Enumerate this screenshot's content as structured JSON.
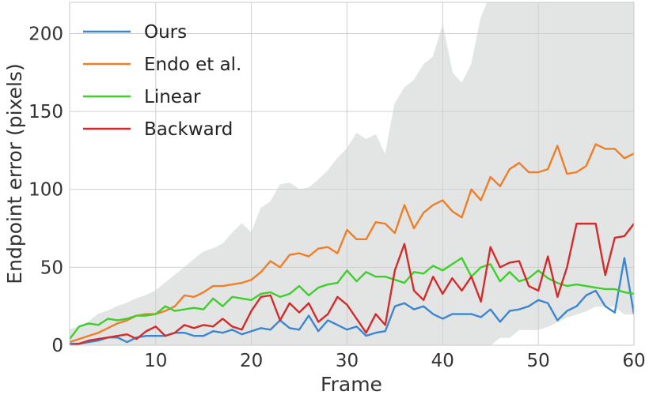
{
  "chart_data": {
    "type": "line",
    "xlabel": "Frame",
    "ylabel": "Endpoint error (pixels)",
    "xlim": [
      1,
      60
    ],
    "ylim": [
      0,
      220
    ],
    "xticks": [
      10,
      20,
      30,
      40,
      50,
      60
    ],
    "yticks": [
      0,
      50,
      100,
      150,
      200
    ],
    "grid": true,
    "legend_position": "top-left",
    "x": [
      1,
      2,
      3,
      4,
      5,
      6,
      7,
      8,
      9,
      10,
      11,
      12,
      13,
      14,
      15,
      16,
      17,
      18,
      19,
      20,
      21,
      22,
      23,
      24,
      25,
      26,
      27,
      28,
      29,
      30,
      31,
      32,
      33,
      34,
      35,
      36,
      37,
      38,
      39,
      40,
      41,
      42,
      43,
      44,
      45,
      46,
      47,
      48,
      49,
      50,
      51,
      52,
      53,
      54,
      55,
      56,
      57,
      58,
      59,
      60
    ],
    "series": [
      {
        "name": "Ours",
        "color": "#3b86d0",
        "values": [
          1,
          1,
          2,
          3,
          5,
          5,
          2,
          5,
          6,
          6,
          6,
          8,
          8,
          6,
          6,
          9,
          8,
          10,
          7,
          9,
          11,
          10,
          16,
          11,
          10,
          19,
          9,
          16,
          13,
          10,
          12,
          6,
          8,
          9,
          25,
          27,
          23,
          25,
          20,
          17,
          20,
          20,
          20,
          18,
          23,
          15,
          22,
          23,
          25,
          29,
          27,
          16,
          22,
          25,
          32,
          35,
          25,
          21,
          56,
          20
        ]
      },
      {
        "name": "Endo et al.",
        "color": "#f07e26",
        "values": [
          2,
          4,
          6,
          8,
          11,
          14,
          16,
          19,
          20,
          20,
          22,
          25,
          32,
          31,
          34,
          38,
          38,
          39,
          40,
          42,
          47,
          54,
          50,
          58,
          59,
          57,
          62,
          63,
          59,
          74,
          68,
          68,
          79,
          78,
          72,
          90,
          75,
          85,
          90,
          93,
          86,
          82,
          100,
          93,
          108,
          102,
          113,
          117,
          111,
          111,
          113,
          128,
          110,
          111,
          115,
          129,
          126,
          126,
          120,
          123
        ]
      },
      {
        "name": "Linear",
        "color": "#3ecf2a",
        "values": [
          4,
          12,
          14,
          13,
          17,
          16,
          17,
          19,
          19,
          20,
          25,
          22,
          23,
          24,
          23,
          30,
          25,
          31,
          30,
          29,
          33,
          34,
          31,
          33,
          38,
          32,
          37,
          39,
          40,
          48,
          41,
          47,
          44,
          44,
          42,
          40,
          47,
          46,
          51,
          48,
          52,
          56,
          44,
          50,
          52,
          41,
          47,
          41,
          43,
          48,
          43,
          40,
          38,
          39,
          38,
          37,
          36,
          36,
          34,
          33
        ]
      },
      {
        "name": "Backward",
        "color": "#d42a2a",
        "values": [
          0,
          1,
          3,
          4,
          5,
          6,
          7,
          4,
          9,
          12,
          6,
          8,
          13,
          11,
          13,
          12,
          17,
          12,
          10,
          22,
          31,
          32,
          16,
          27,
          21,
          27,
          15,
          20,
          31,
          26,
          17,
          8,
          20,
          13,
          48,
          65,
          35,
          29,
          44,
          33,
          43,
          35,
          44,
          28,
          63,
          50,
          53,
          54,
          38,
          35,
          57,
          31,
          50,
          78,
          78,
          78,
          45,
          69,
          70,
          78
        ]
      },
      {
        "name": "",
        "type": "area",
        "color": "#e3e5e5",
        "lower": [
          0,
          0,
          0,
          0,
          0,
          0,
          0,
          0,
          0,
          0,
          0,
          0,
          0,
          0,
          0,
          0,
          0,
          0,
          0,
          0,
          0,
          0,
          0,
          0,
          0,
          0,
          0,
          0,
          0,
          0,
          0,
          0,
          0,
          0,
          0,
          0,
          0,
          0,
          0,
          0,
          0,
          0,
          0,
          0,
          0,
          5,
          5,
          10,
          10,
          10,
          12,
          15,
          18,
          20,
          22,
          25,
          25,
          25,
          20,
          20
        ],
        "upper": [
          10,
          12,
          15,
          20,
          22,
          25,
          27,
          30,
          32,
          35,
          40,
          45,
          50,
          55,
          60,
          62,
          65,
          72,
          78,
          72,
          88,
          92,
          103,
          104,
          100,
          101,
          106,
          112,
          120,
          126,
          136,
          132,
          135,
          122,
          155,
          165,
          170,
          180,
          185,
          205,
          175,
          168,
          180,
          210,
          225,
          240,
          225,
          235,
          240,
          230,
          245,
          240,
          240,
          245,
          245,
          245,
          245,
          250,
          240,
          245
        ]
      }
    ]
  }
}
